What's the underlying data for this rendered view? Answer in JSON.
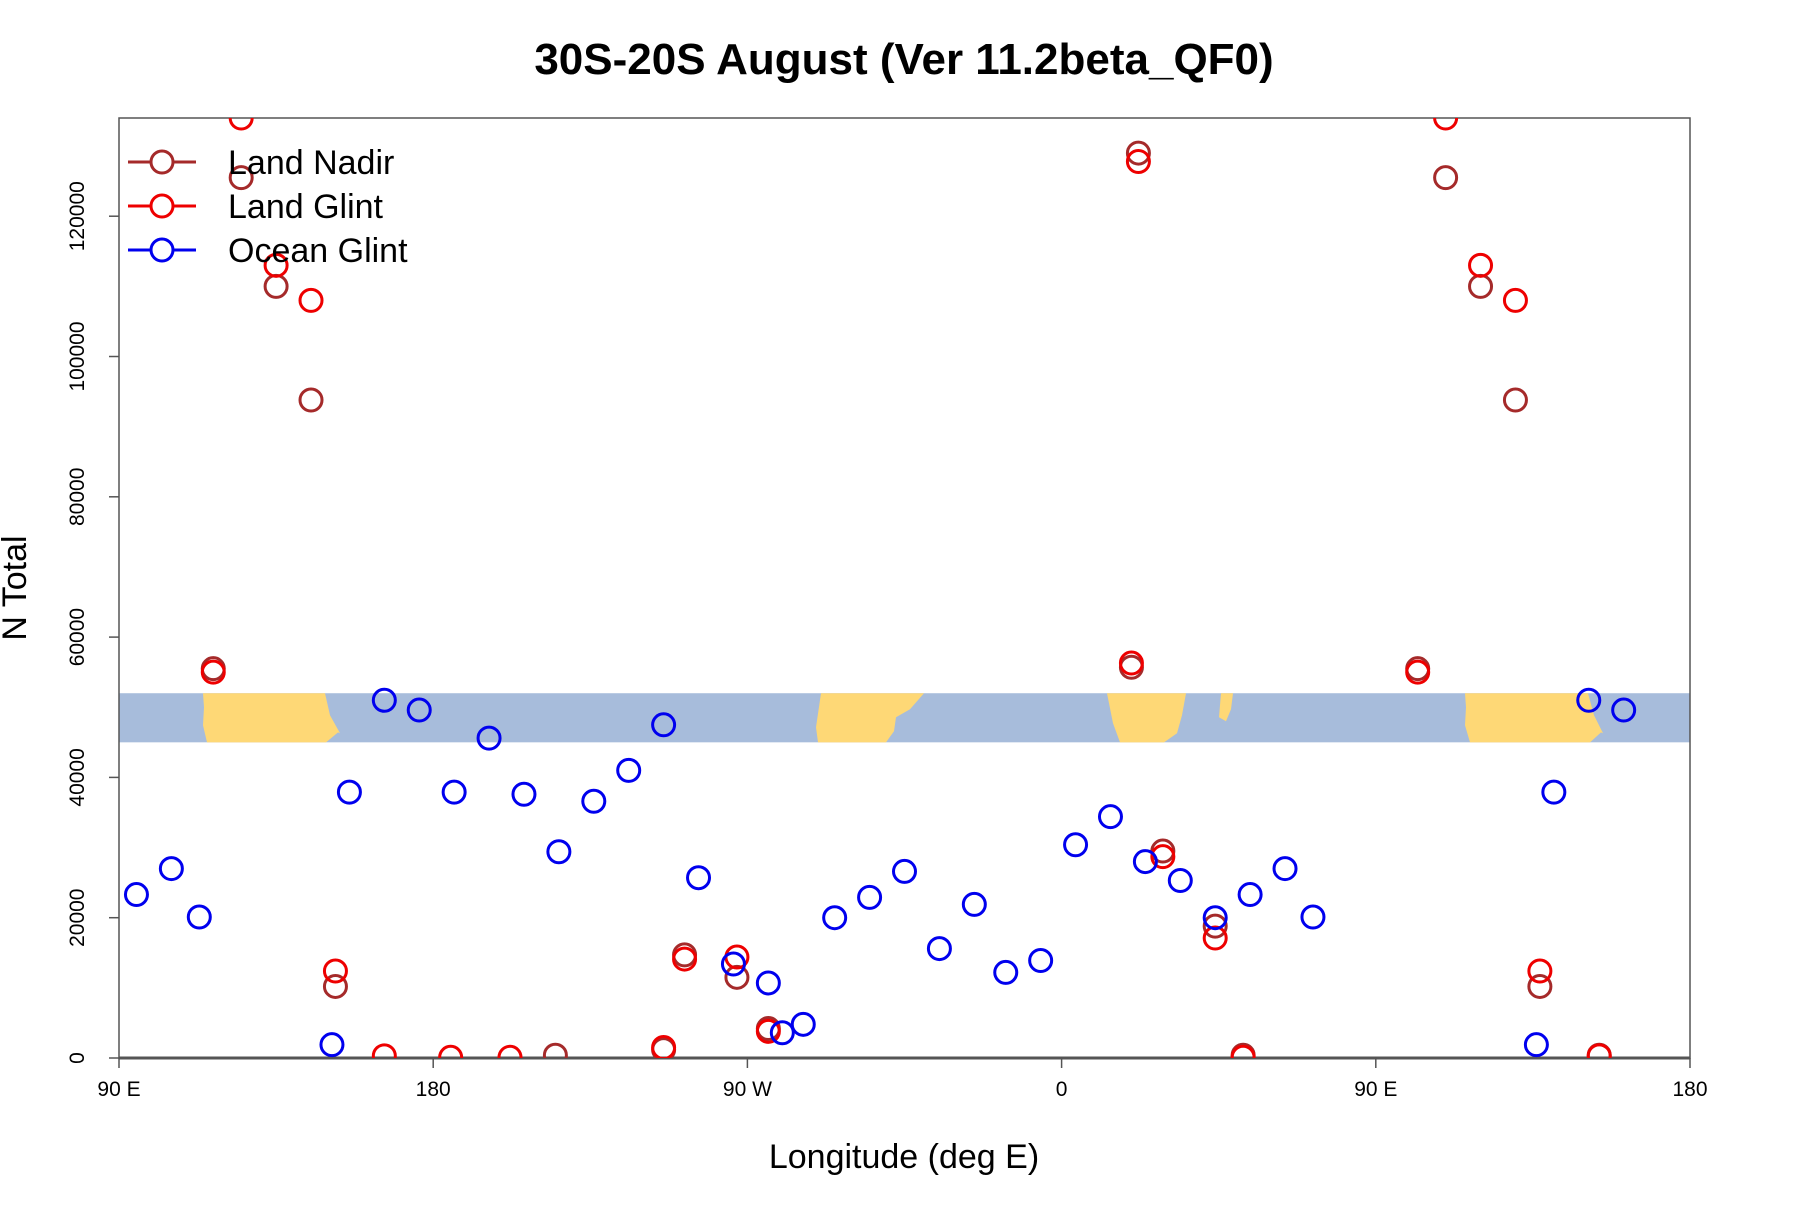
{
  "chart_data": {
    "type": "scatter",
    "title": "30S-20S August (Ver 11.2beta_QF0)",
    "xlabel": "Longitude (deg E)",
    "ylabel": "N Total",
    "xlim": [
      90,
      540
    ],
    "ylim": [
      0,
      134000
    ],
    "x_ticks": [
      {
        "value": 90,
        "label": "90 E"
      },
      {
        "value": 180,
        "label": "180"
      },
      {
        "value": 270,
        "label": "90 W"
      },
      {
        "value": 360,
        "label": "0"
      },
      {
        "value": 450,
        "label": "90 E"
      },
      {
        "value": 540,
        "label": "180"
      }
    ],
    "y_ticks": [
      {
        "value": 0,
        "label": "0"
      },
      {
        "value": 20000,
        "label": "20000"
      },
      {
        "value": 40000,
        "label": "40000"
      },
      {
        "value": 60000,
        "label": "60000"
      },
      {
        "value": 80000,
        "label": "80000"
      },
      {
        "value": 100000,
        "label": "100000"
      },
      {
        "value": 120000,
        "label": "120000"
      }
    ],
    "grid": false,
    "legend_position": "top-left",
    "map_band": {
      "y_range": [
        45000,
        52000
      ],
      "ocean_color": "#a7bcdb",
      "land_color": "#fed876"
    },
    "series": [
      {
        "name": "Land Nadir",
        "color": "#a52a2a",
        "points": [
          [
            117,
            55500
          ],
          [
            125,
            125500
          ],
          [
            135,
            110000
          ],
          [
            145,
            93800
          ],
          [
            152,
            10200
          ],
          [
            215,
            400
          ],
          [
            246,
            1200
          ],
          [
            252,
            14700
          ],
          [
            267,
            11500
          ],
          [
            276,
            4200
          ],
          [
            380,
            55700
          ],
          [
            382,
            129000
          ],
          [
            389,
            29500
          ],
          [
            404,
            18800
          ],
          [
            412,
            400
          ],
          [
            462,
            55500
          ],
          [
            470,
            125500
          ],
          [
            480,
            110000
          ],
          [
            490,
            93800
          ],
          [
            497,
            10200
          ],
          [
            514,
            400
          ]
        ]
      },
      {
        "name": "Land Glint",
        "color": "#ee0000",
        "points": [
          [
            117,
            55000
          ],
          [
            125,
            134000
          ],
          [
            135,
            113000
          ],
          [
            145,
            108000
          ],
          [
            152,
            12400
          ],
          [
            166,
            300
          ],
          [
            185,
            100
          ],
          [
            202,
            100
          ],
          [
            246,
            1500
          ],
          [
            252,
            14100
          ],
          [
            267,
            14400
          ],
          [
            276,
            3800
          ],
          [
            380,
            56300
          ],
          [
            382,
            127800
          ],
          [
            389,
            28700
          ],
          [
            404,
            17100
          ],
          [
            412,
            100
          ],
          [
            462,
            55000
          ],
          [
            470,
            134000
          ],
          [
            480,
            113000
          ],
          [
            490,
            108000
          ],
          [
            497,
            12400
          ],
          [
            514,
            300
          ]
        ]
      },
      {
        "name": "Ocean Glint",
        "color": "#0000ee",
        "points": [
          [
            95,
            23300
          ],
          [
            105,
            27000
          ],
          [
            113,
            20100
          ],
          [
            151,
            1900
          ],
          [
            156,
            37900
          ],
          [
            166,
            51000
          ],
          [
            176,
            49600
          ],
          [
            186,
            37900
          ],
          [
            196,
            45600
          ],
          [
            206,
            37600
          ],
          [
            216,
            29400
          ],
          [
            226,
            36600
          ],
          [
            236,
            41000
          ],
          [
            246,
            47500
          ],
          [
            256,
            25700
          ],
          [
            266,
            13400
          ],
          [
            276,
            10700
          ],
          [
            286,
            4800
          ],
          [
            280,
            3600
          ],
          [
            295,
            20000
          ],
          [
            305,
            22900
          ],
          [
            315,
            26600
          ],
          [
            325,
            15600
          ],
          [
            335,
            21900
          ],
          [
            344,
            12200
          ],
          [
            354,
            13900
          ],
          [
            364,
            30400
          ],
          [
            374,
            34400
          ],
          [
            384,
            28000
          ],
          [
            394,
            25300
          ],
          [
            404,
            20000
          ],
          [
            414,
            23300
          ],
          [
            424,
            27000
          ],
          [
            432,
            20100
          ],
          [
            496,
            1900
          ],
          [
            501,
            37900
          ],
          [
            511,
            51000
          ],
          [
            521,
            49600
          ]
        ]
      }
    ]
  }
}
